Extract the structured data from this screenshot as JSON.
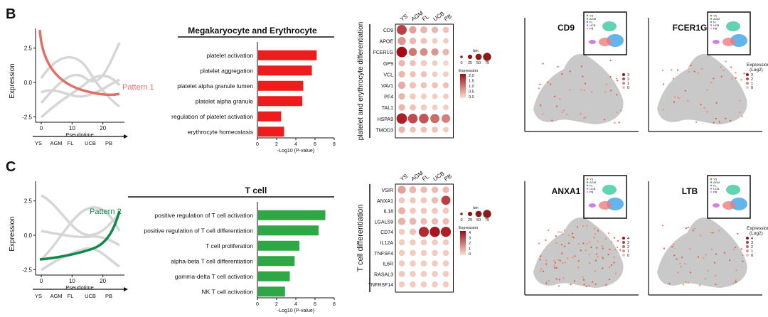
{
  "figure": {
    "panels": [
      {
        "letter": "B",
        "pattern_label": "Pattern 1",
        "pattern_color": "#e07066",
        "trend": {
          "ylabel": "Expression",
          "xlabel": "Pseudotime",
          "yticks": [
            "2.5",
            "0.0",
            "-2.5"
          ],
          "xticks": [
            "0",
            "10",
            "20"
          ],
          "stages": [
            "YS",
            "AGM",
            "FL",
            "UCB",
            "PB"
          ]
        },
        "bar": {
          "title": "Megakaryocyte and Erythrocyte",
          "xlabel": "-Log10 (P-value)",
          "xticks": [
            "0",
            "2",
            "4",
            "6",
            "8"
          ],
          "xmax": 8,
          "color": "#ee1c1c",
          "terms": [
            "platelet activation",
            "platelet aggregation",
            "platelet alpha granule lumen",
            "platelet alpha granule",
            "regulation of platelet activation",
            "erythrocyte homeostasis"
          ],
          "values": [
            6.1,
            5.6,
            4.7,
            4.6,
            2.4,
            2.7
          ]
        },
        "dot": {
          "ylabel": "platelet and erythrocyte differentiation",
          "columns": [
            "YS",
            "AGM",
            "FL",
            "UCB",
            "PB"
          ],
          "genes": [
            "CD9",
            "APOE",
            "FCER1G",
            "GP9",
            "VCL",
            "VAV1",
            "PF4",
            "TAL1",
            "HSPA9",
            "TMOD3"
          ],
          "size": [
            [
              75,
              30,
              25,
              20,
              15
            ],
            [
              40,
              20,
              15,
              10,
              10
            ],
            [
              90,
              40,
              35,
              30,
              20
            ],
            [
              20,
              15,
              15,
              10,
              10
            ],
            [
              20,
              15,
              15,
              10,
              10
            ],
            [
              30,
              20,
              15,
              15,
              15
            ],
            [
              20,
              15,
              10,
              10,
              10
            ],
            [
              20,
              15,
              15,
              10,
              10
            ],
            [
              90,
              70,
              70,
              60,
              50
            ],
            [
              20,
              15,
              15,
              15,
              10
            ]
          ],
          "expr": [
            [
              1.5,
              0.6,
              0.4,
              0.4,
              0.3
            ],
            [
              0.7,
              0.4,
              0.3,
              0.2,
              0.2
            ],
            [
              2.0,
              1.0,
              0.8,
              0.7,
              0.4
            ],
            [
              0.4,
              0.3,
              0.2,
              0.2,
              0.1
            ],
            [
              0.4,
              0.3,
              0.3,
              0.2,
              0.2
            ],
            [
              0.5,
              0.3,
              0.3,
              0.3,
              0.3
            ],
            [
              0.4,
              0.2,
              0.2,
              0.2,
              0.2
            ],
            [
              0.4,
              0.3,
              0.2,
              0.2,
              0.2
            ],
            [
              1.8,
              1.4,
              1.3,
              1.1,
              0.9
            ],
            [
              0.4,
              0.3,
              0.3,
              0.3,
              0.2
            ]
          ],
          "size_legend": {
            "title": "bin",
            "values": [
              "0",
              "25",
              "50",
              "75"
            ]
          },
          "color_legend": {
            "title": "Expression",
            "ticks": [
              "2.0",
              "1.5",
              "1.0",
              "0.5",
              "0.0"
            ]
          }
        },
        "umaps": [
          {
            "gene": "CD9",
            "scale_title": "",
            "scale_ticks": [
              "3",
              "2",
              "1",
              "0"
            ],
            "density": 0.18
          },
          {
            "gene": "FCER1G",
            "scale_title": "Expression (Log2)",
            "scale_ticks": [
              "3",
              "2",
              "1",
              "0"
            ],
            "density": 0.2
          }
        ],
        "inset_legend": [
          "YS",
          "AGM",
          "FL",
          "UCB",
          "PB"
        ]
      },
      {
        "letter": "C",
        "pattern_label": "Pattern 2",
        "pattern_color": "#0d8a4a",
        "trend": {
          "ylabel": "Expression",
          "xlabel": "Pseudotime",
          "yticks": [
            "2.5",
            "0.0",
            "-2.5"
          ],
          "xticks": [
            "0",
            "10",
            "20"
          ],
          "stages": [
            "YS",
            "AGM",
            "FL",
            "UCB",
            "PB"
          ]
        },
        "bar": {
          "title": "T cell",
          "xlabel": "-Log10 (P-value)",
          "xticks": [
            "0",
            "2",
            "4",
            "6",
            "8"
          ],
          "xmax": 8,
          "color": "#2ea845",
          "terms": [
            "positive regulation of T cell activation",
            "positive regulation of T cell differentiation",
            "T cell proliferation",
            "alpha-beta T cell differentiation",
            "gamma-delta T cell activation",
            "NK T cell activation"
          ],
          "values": [
            7.0,
            6.3,
            4.3,
            3.8,
            3.3,
            2.8
          ]
        },
        "dot": {
          "ylabel": "T cell differentiation",
          "columns": [
            "YS",
            "AGM",
            "FL",
            "UCB",
            "PB"
          ],
          "genes": [
            "VSIR",
            "ANXA1",
            "IL18",
            "LGALS9",
            "CD74",
            "IL12A",
            "TNFSF4",
            "IL6R",
            "RASAL3",
            "TNFRSF14"
          ],
          "size": [
            [
              40,
              25,
              20,
              20,
              20
            ],
            [
              15,
              15,
              15,
              20,
              60
            ],
            [
              25,
              15,
              15,
              15,
              15
            ],
            [
              30,
              25,
              20,
              20,
              20
            ],
            [
              15,
              20,
              80,
              85,
              80
            ],
            [
              15,
              15,
              15,
              15,
              15
            ],
            [
              15,
              15,
              15,
              15,
              15
            ],
            [
              15,
              15,
              15,
              15,
              15
            ],
            [
              15,
              15,
              15,
              15,
              15
            ],
            [
              15,
              15,
              15,
              15,
              15
            ]
          ],
          "expr": [
            [
              1.2,
              0.8,
              0.7,
              0.7,
              0.7
            ],
            [
              0.5,
              0.5,
              0.5,
              0.7,
              3.0
            ],
            [
              0.9,
              0.5,
              0.5,
              0.5,
              0.5
            ],
            [
              0.9,
              0.8,
              0.7,
              0.7,
              0.7
            ],
            [
              0.4,
              0.6,
              3.4,
              3.8,
              3.6
            ],
            [
              0.4,
              0.4,
              0.4,
              0.4,
              0.4
            ],
            [
              0.4,
              0.4,
              0.4,
              0.4,
              0.4
            ],
            [
              0.4,
              0.4,
              0.4,
              0.4,
              0.4
            ],
            [
              0.5,
              0.4,
              0.4,
              0.4,
              0.4
            ],
            [
              0.4,
              0.4,
              0.4,
              0.4,
              0.4
            ]
          ],
          "size_legend": {
            "title": "bin",
            "values": [
              "0",
              "25",
              "50",
              "75"
            ]
          },
          "color_legend": {
            "title": "Expression",
            "ticks": [
              "4",
              "3",
              "2",
              "1",
              "0"
            ]
          }
        },
        "umaps": [
          {
            "gene": "ANXA1",
            "scale_title": "",
            "scale_ticks": [
              "4",
              "3",
              "2",
              "1",
              "0"
            ],
            "density": 0.45
          },
          {
            "gene": "LTB",
            "scale_title": "Expression (Log2)",
            "scale_ticks": [
              "4",
              "3",
              "2",
              "1",
              "0"
            ],
            "density": 0.22
          }
        ],
        "inset_legend": [
          "YS",
          "AGM",
          "FL",
          "UCB",
          "PB"
        ]
      }
    ]
  }
}
